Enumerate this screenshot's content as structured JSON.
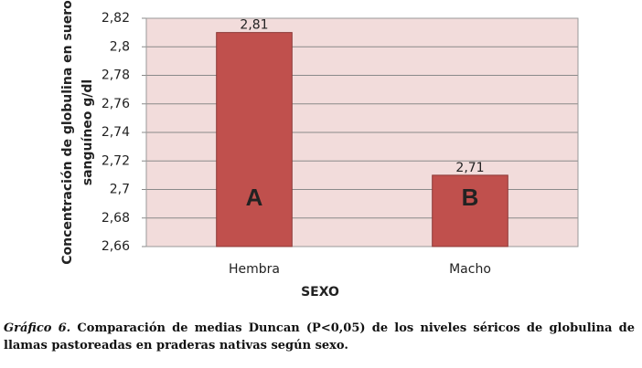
{
  "chart_data": {
    "type": "bar",
    "y_label": [
      "Concentración de globulina en suero",
      "sanguíneo g/dl"
    ],
    "x_label": "SEXO",
    "categories": [
      "Hembra",
      "Macho"
    ],
    "values": [
      2.81,
      2.71
    ],
    "value_labels": [
      "2,81",
      "2,71"
    ],
    "annotations": [
      "A",
      "B"
    ],
    "color": "#c0504d",
    "ylim": [
      2.66,
      2.82
    ],
    "yticks": [
      {
        "value": 2.66,
        "label": "2,66"
      },
      {
        "value": 2.68,
        "label": "2,68"
      },
      {
        "value": 2.7,
        "label": "2,7"
      },
      {
        "value": 2.72,
        "label": "2,72"
      },
      {
        "value": 2.74,
        "label": "2,74"
      },
      {
        "value": 2.76,
        "label": "2,76"
      },
      {
        "value": 2.78,
        "label": "2,78"
      },
      {
        "value": 2.8,
        "label": "2,8"
      },
      {
        "value": 2.82,
        "label": "2,82"
      }
    ],
    "grid": true
  },
  "caption": {
    "label": "Gráfico 6.",
    "text": "Comparación de medias Duncan (P<0,05) de los niveles séricos de globulina de llamas pastoreadas en praderas nativas según sexo."
  }
}
